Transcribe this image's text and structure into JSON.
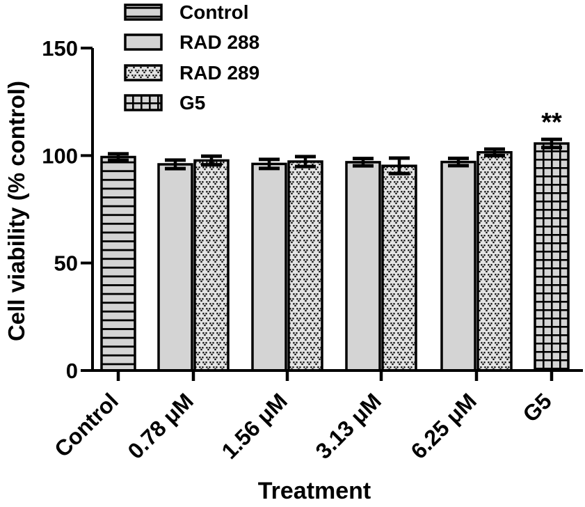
{
  "figure": {
    "background": "#ffffff",
    "text_color": "#000000"
  },
  "chart_data": {
    "type": "bar",
    "title": "",
    "xlabel": "Treatment",
    "ylabel": "Cell viability (% control)",
    "ylim": [
      0,
      150
    ],
    "yticks": [
      0,
      50,
      100,
      150
    ],
    "grid": false,
    "legend_position": "top-left",
    "bar_fill": "#d4d4d4",
    "bar_edge": "#000000",
    "error_bar_color": "#000000",
    "series": [
      {
        "name": "Control",
        "pattern": "hlines"
      },
      {
        "name": "RAD 288",
        "pattern": "solid"
      },
      {
        "name": "RAD 289",
        "pattern": "stipple"
      },
      {
        "name": "G5",
        "pattern": "grid"
      }
    ],
    "groups": [
      {
        "label": "Control",
        "bars": [
          {
            "series": "Control",
            "value": 99.3,
            "error": 1.5
          }
        ]
      },
      {
        "label": "0.78 μM",
        "bars": [
          {
            "series": "RAD 288",
            "value": 95.9,
            "error": 2.0
          },
          {
            "series": "RAD 289",
            "value": 97.7,
            "error": 2.0
          }
        ]
      },
      {
        "label": "1.56 μM",
        "bars": [
          {
            "series": "RAD 288",
            "value": 96.1,
            "error": 2.1
          },
          {
            "series": "RAD 289",
            "value": 97.2,
            "error": 2.3
          }
        ]
      },
      {
        "label": "3.13 μM",
        "bars": [
          {
            "series": "RAD 288",
            "value": 96.9,
            "error": 1.7
          },
          {
            "series": "RAD 289",
            "value": 95.2,
            "error": 3.6
          }
        ]
      },
      {
        "label": "6.25 μM",
        "bars": [
          {
            "series": "RAD 288",
            "value": 97.0,
            "error": 1.7
          },
          {
            "series": "RAD 289",
            "value": 101.5,
            "error": 1.5
          }
        ]
      },
      {
        "label": "G5",
        "bars": [
          {
            "series": "G5",
            "value": 105.6,
            "error": 1.9,
            "annotation": "**"
          }
        ]
      }
    ]
  }
}
